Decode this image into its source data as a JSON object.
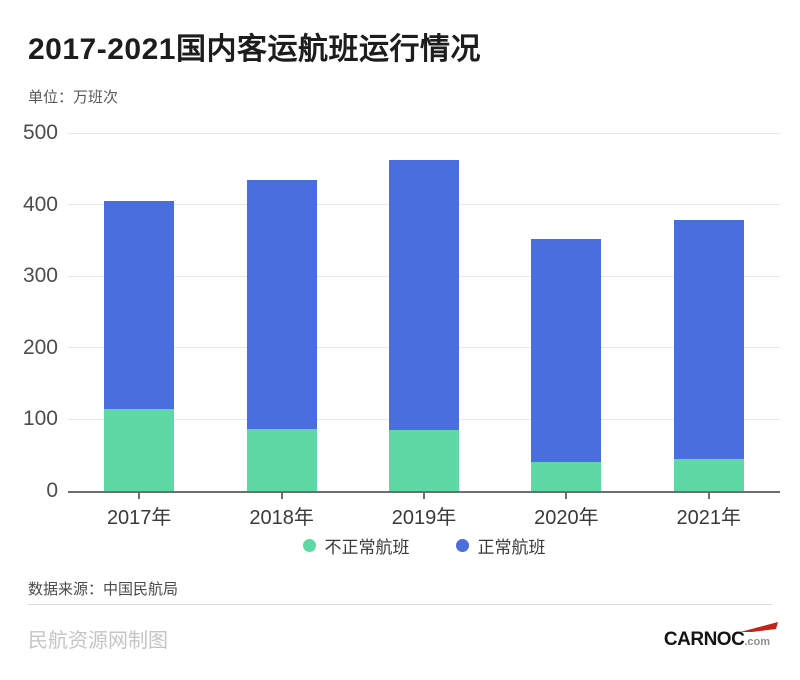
{
  "header": {
    "title": "2017-2021国内客运航班运行情况",
    "unit": "单位：万班次"
  },
  "chart_data": {
    "type": "bar",
    "stacked": true,
    "title": "2017-2021国内客运航班运行情况",
    "unit_label": "单位：万班次",
    "categories": [
      "2017年",
      "2018年",
      "2019年",
      "2020年",
      "2021年"
    ],
    "series": [
      {
        "key": "abnormal-flights",
        "name": "不正常航班",
        "color": "#5ed8a5",
        "values": [
          115,
          86,
          85,
          40,
          45
        ]
      },
      {
        "key": "normal-flights",
        "name": "正常航班",
        "color": "#4a6edd",
        "values": [
          290,
          348,
          377,
          312,
          333
        ]
      }
    ],
    "totals": [
      405,
      434,
      462,
      352,
      378
    ],
    "ylim": [
      0,
      500
    ],
    "yticks": [
      0,
      100,
      200,
      300,
      400,
      500
    ],
    "grid": true,
    "legend_position": "bottom"
  },
  "footer": {
    "source": "数据来源：中国民航局",
    "credit": "民航资源网制图",
    "logo_text": "CARNOC",
    "logo_suffix": ".com"
  },
  "colors": {
    "abnormal": "#5ed8a5",
    "normal": "#4a6edd",
    "gridline": "#e8e8e8",
    "axis": "#6e6e6e",
    "logo_swoosh": "#c4231b"
  }
}
